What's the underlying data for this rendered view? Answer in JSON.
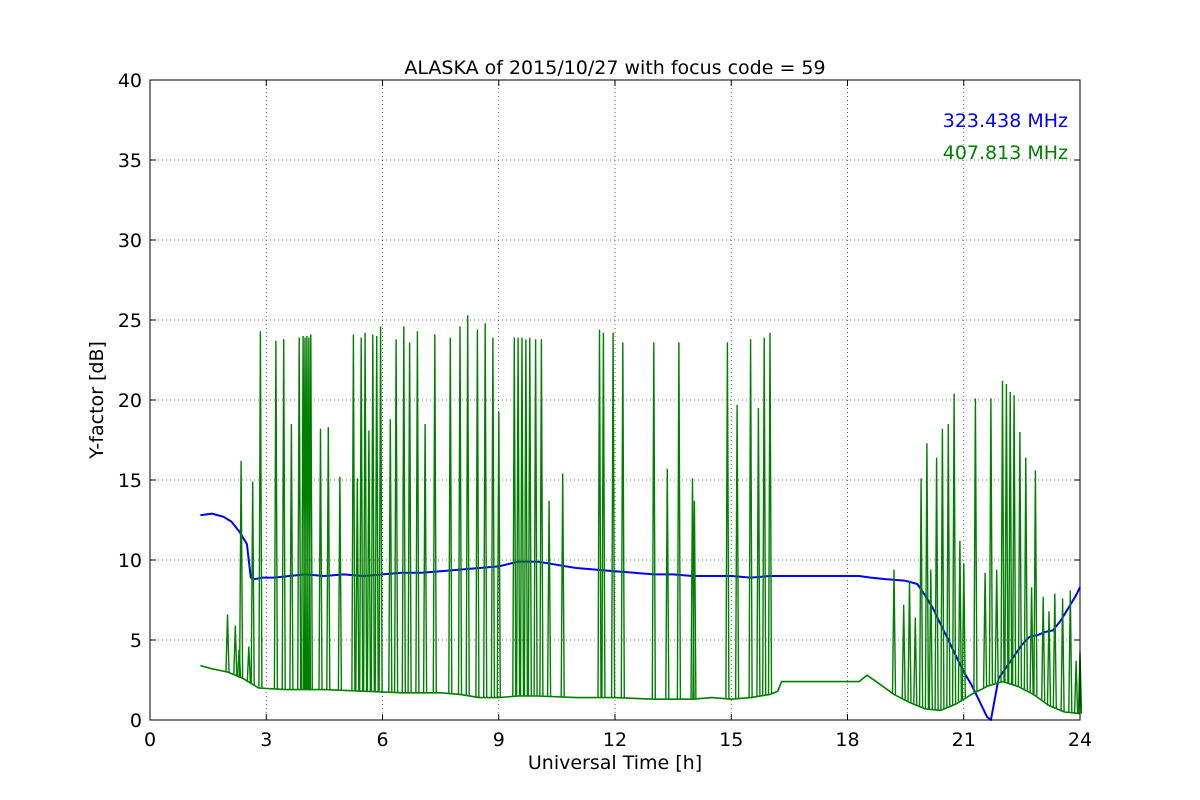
{
  "chart_data": {
    "type": "line",
    "title": "ALASKA of 2015/10/27 with focus code = 59",
    "xlabel": "Universal Time [h]",
    "ylabel": "Y-factor [dB]",
    "xlim": [
      0,
      24
    ],
    "ylim": [
      0,
      40
    ],
    "xticks": [
      0,
      3,
      6,
      9,
      12,
      15,
      18,
      21,
      24
    ],
    "yticks": [
      0,
      5,
      10,
      15,
      20,
      25,
      30,
      35,
      40
    ],
    "grid": true,
    "legend_position": "top-right",
    "series": [
      {
        "name": "323.438 MHz",
        "color": "#0000ff",
        "x": [
          1.3,
          1.6,
          1.9,
          2.1,
          2.3,
          2.5,
          2.6,
          2.7,
          2.9,
          3.2,
          3.6,
          4.0,
          4.5,
          5.0,
          5.5,
          6.0,
          6.5,
          7.0,
          7.5,
          8.0,
          8.5,
          9.0,
          9.5,
          10.0,
          10.5,
          11.0,
          11.5,
          12.0,
          12.5,
          13.0,
          13.5,
          14.0,
          14.5,
          15.0,
          15.5,
          16.0,
          16.2,
          18.3,
          18.6,
          19.0,
          19.5,
          19.8,
          20.0,
          20.2,
          20.4,
          20.6,
          20.8,
          21.0,
          21.2,
          21.4,
          21.6,
          21.7,
          21.9,
          22.1,
          22.3,
          22.5,
          22.7,
          22.9,
          23.1,
          23.3,
          23.5,
          23.7,
          23.9,
          24.0
        ],
        "y": [
          12.8,
          12.9,
          12.7,
          12.4,
          11.8,
          11.0,
          8.9,
          8.8,
          8.9,
          8.9,
          9.0,
          9.1,
          9.0,
          9.1,
          9.0,
          9.1,
          9.2,
          9.2,
          9.3,
          9.4,
          9.5,
          9.6,
          9.9,
          9.9,
          9.7,
          9.5,
          9.4,
          9.3,
          9.2,
          9.1,
          9.1,
          9.0,
          9.0,
          9.0,
          8.9,
          9.0,
          9.0,
          9.0,
          8.9,
          8.8,
          8.7,
          8.5,
          7.8,
          7.0,
          6.0,
          5.0,
          4.0,
          3.0,
          2.2,
          1.2,
          0.2,
          0.0,
          2.6,
          3.3,
          4.0,
          4.7,
          5.2,
          5.3,
          5.5,
          5.6,
          6.2,
          7.0,
          7.8,
          8.3
        ]
      },
      {
        "name": "407.813 MHz",
        "color": "#007f00",
        "x": [
          1.3,
          1.6,
          2.0,
          2.4,
          2.8,
          3.5,
          4.5,
          5.5,
          6.5,
          7.5,
          8.0,
          8.5,
          9.0,
          9.5,
          10.0,
          11.0,
          12.0,
          13.0,
          14.0,
          14.5,
          15.0,
          15.5,
          16.0,
          16.2,
          16.3,
          18.3,
          18.5,
          18.8,
          19.2,
          19.6,
          20.0,
          20.4,
          20.8,
          21.2,
          21.6,
          22.0,
          22.4,
          22.8,
          23.2,
          23.6,
          24.0
        ],
        "y": [
          3.4,
          3.2,
          3.0,
          2.6,
          2.0,
          1.9,
          1.9,
          1.8,
          1.7,
          1.7,
          1.6,
          1.4,
          1.4,
          1.5,
          1.5,
          1.4,
          1.4,
          1.3,
          1.3,
          1.4,
          1.3,
          1.4,
          1.6,
          1.8,
          2.4,
          2.4,
          2.8,
          2.3,
          1.6,
          1.1,
          0.7,
          0.6,
          1.0,
          1.6,
          2.1,
          2.4,
          2.1,
          1.6,
          0.9,
          0.5,
          0.4
        ],
        "spikes": [
          [
            2.0,
            6.6
          ],
          [
            2.2,
            5.9
          ],
          [
            2.3,
            4.4
          ],
          [
            2.35,
            16.2
          ],
          [
            2.55,
            4.6
          ],
          [
            2.65,
            14.9
          ],
          [
            2.85,
            24.3
          ],
          [
            3.25,
            23.7
          ],
          [
            3.45,
            23.8
          ],
          [
            3.65,
            18.5
          ],
          [
            3.85,
            23.9
          ],
          [
            3.95,
            24.0
          ],
          [
            4.0,
            23.9
          ],
          [
            4.05,
            24.0
          ],
          [
            4.1,
            23.9
          ],
          [
            4.15,
            24.1
          ],
          [
            4.4,
            18.2
          ],
          [
            4.6,
            18.3
          ],
          [
            4.9,
            15.2
          ],
          [
            5.25,
            24.1
          ],
          [
            5.35,
            15.1
          ],
          [
            5.45,
            23.9
          ],
          [
            5.55,
            24.2
          ],
          [
            5.65,
            18.1
          ],
          [
            5.75,
            24.1
          ],
          [
            5.85,
            24.0
          ],
          [
            5.95,
            24.6
          ],
          [
            6.2,
            18.8
          ],
          [
            6.35,
            23.8
          ],
          [
            6.55,
            24.6
          ],
          [
            6.7,
            23.6
          ],
          [
            6.9,
            24.3
          ],
          [
            7.1,
            18.5
          ],
          [
            7.35,
            24.1
          ],
          [
            7.75,
            23.9
          ],
          [
            8.0,
            24.6
          ],
          [
            8.2,
            25.3
          ],
          [
            8.45,
            24.4
          ],
          [
            8.65,
            24.8
          ],
          [
            8.85,
            23.9
          ],
          [
            9.0,
            19.3
          ],
          [
            9.4,
            23.9
          ],
          [
            9.5,
            23.9
          ],
          [
            9.6,
            23.9
          ],
          [
            9.7,
            23.8
          ],
          [
            9.8,
            23.9
          ],
          [
            9.95,
            23.8
          ],
          [
            10.1,
            23.8
          ],
          [
            10.3,
            13.7
          ],
          [
            10.65,
            15.4
          ],
          [
            11.6,
            24.4
          ],
          [
            11.7,
            24.2
          ],
          [
            11.95,
            24.2
          ],
          [
            12.2,
            23.6
          ],
          [
            13.0,
            23.6
          ],
          [
            13.35,
            15.7
          ],
          [
            13.65,
            23.6
          ],
          [
            14.0,
            15.1
          ],
          [
            14.05,
            13.7
          ],
          [
            14.9,
            23.6
          ],
          [
            15.15,
            19.7
          ],
          [
            15.5,
            23.8
          ],
          [
            15.7,
            19.5
          ],
          [
            15.85,
            23.9
          ],
          [
            16.0,
            24.2
          ],
          [
            19.2,
            9.4
          ],
          [
            19.45,
            7.2
          ],
          [
            19.6,
            8.7
          ],
          [
            19.75,
            6.4
          ],
          [
            19.9,
            15.1
          ],
          [
            20.05,
            17.3
          ],
          [
            20.15,
            9.4
          ],
          [
            20.3,
            16.4
          ],
          [
            20.45,
            18.2
          ],
          [
            20.6,
            18.5
          ],
          [
            20.75,
            20.4
          ],
          [
            20.9,
            11.2
          ],
          [
            21.0,
            9.8
          ],
          [
            21.3,
            20.1
          ],
          [
            21.55,
            9.2
          ],
          [
            21.7,
            20.1
          ],
          [
            21.85,
            9.4
          ],
          [
            22.0,
            21.2
          ],
          [
            22.1,
            21.0
          ],
          [
            22.2,
            20.5
          ],
          [
            22.3,
            20.3
          ],
          [
            22.45,
            18.0
          ],
          [
            22.6,
            16.4
          ],
          [
            22.75,
            8.3
          ],
          [
            22.85,
            15.6
          ],
          [
            23.05,
            7.7
          ],
          [
            23.2,
            6.8
          ],
          [
            23.35,
            7.9
          ],
          [
            23.55,
            7.6
          ],
          [
            23.75,
            8.1
          ],
          [
            23.9,
            3.7
          ],
          [
            24.0,
            4.3
          ]
        ]
      }
    ]
  }
}
